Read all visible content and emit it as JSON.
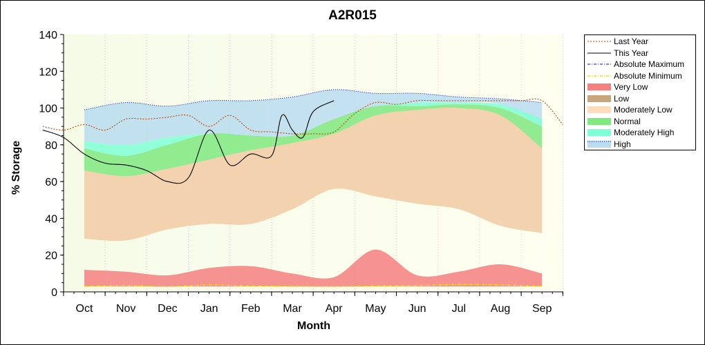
{
  "chart_data": {
    "type": "area",
    "title": "A2R015",
    "xlabel": "Month",
    "ylabel": "% Storage",
    "ylim": [
      0,
      140
    ],
    "yticks": [
      0,
      20,
      40,
      60,
      80,
      100,
      120,
      140
    ],
    "categories": [
      "Oct",
      "Nov",
      "Dec",
      "Jan",
      "Feb",
      "Mar",
      "Apr",
      "May",
      "Jun",
      "Jul",
      "Aug",
      "Sep"
    ],
    "bands": [
      {
        "name": "High",
        "color": "#b9dcf0",
        "stroke": "#0000cc",
        "lower": [
          82,
          80,
          84,
          86,
          85,
          85,
          94,
          101,
          103,
          103,
          102,
          90
        ],
        "upper": [
          99,
          103,
          101,
          104,
          104,
          106,
          110,
          108,
          108,
          106,
          105,
          103
        ]
      },
      {
        "name": "Moderately High",
        "color": "#7fffd4",
        "lower": [
          78,
          74,
          80,
          86,
          85,
          85,
          94,
          101,
          101,
          102,
          100,
          90
        ],
        "upper": [
          82,
          80,
          84,
          86,
          85,
          85,
          94,
          101,
          103,
          103,
          102,
          94
        ]
      },
      {
        "name": "Normal",
        "color": "#7fe87f",
        "lower": [
          66,
          63,
          67,
          72,
          77,
          81,
          86,
          96,
          99,
          100,
          96,
          78
        ],
        "upper": [
          78,
          74,
          80,
          86,
          85,
          85,
          94,
          101,
          101,
          102,
          100,
          90
        ]
      },
      {
        "name": "Low",
        "color": "#c8a57c",
        "lower": [
          29,
          28,
          34,
          37,
          37,
          45,
          56,
          52,
          48,
          45,
          36,
          32
        ],
        "upper": [
          66,
          63,
          67,
          72,
          77,
          81,
          86,
          96,
          99,
          100,
          96,
          78
        ]
      },
      {
        "name": "Moderately Low",
        "color": "#ffdcbb",
        "lower": [
          29,
          28,
          34,
          37,
          37,
          45,
          56,
          52,
          48,
          45,
          36,
          32
        ],
        "upper": [
          66,
          63,
          67,
          72,
          77,
          81,
          86,
          96,
          99,
          100,
          96,
          78
        ]
      },
      {
        "name": "Very Low",
        "color": "#f58080",
        "lower": [
          3,
          3,
          3,
          3,
          3,
          3,
          3,
          3,
          3,
          3,
          3,
          3
        ],
        "upper": [
          12,
          11,
          9,
          13,
          14,
          10,
          8,
          23,
          9,
          11,
          15,
          10
        ]
      }
    ],
    "series": [
      {
        "name": "Last Year",
        "style": "dotted",
        "color": "#c04000",
        "x": [
          -1,
          -0.5,
          0,
          0.5,
          1,
          1.5,
          2,
          2.5,
          3,
          3.5,
          4,
          4.5,
          5,
          5.5,
          6,
          6.5,
          7,
          7.5,
          8,
          8.5,
          9,
          9.5,
          10,
          10.5,
          11,
          11.5
        ],
        "y": [
          90,
          88,
          91,
          88,
          94,
          94,
          95,
          96,
          90,
          96,
          88,
          87,
          86,
          86,
          87,
          97,
          103,
          102,
          104,
          104,
          104,
          104,
          104,
          104,
          104,
          91
        ]
      },
      {
        "name": "This Year",
        "style": "solid",
        "color": "#000000",
        "x": [
          -1,
          -0.5,
          0,
          0.5,
          1,
          1.5,
          2,
          2.5,
          3,
          3.5,
          4,
          4.5,
          4.75,
          5,
          5.25,
          5.5,
          6
        ],
        "y": [
          88,
          84,
          75,
          70,
          69,
          66,
          60,
          62,
          88,
          69,
          75,
          74,
          96,
          88,
          84,
          98,
          104
        ]
      },
      {
        "name": "Absolute Maximum",
        "style": "dashdot",
        "color": "#0000ff",
        "x": [],
        "y": []
      },
      {
        "name": "Absolute Minimum",
        "style": "dashdot",
        "color": "#e8e800",
        "x": [
          0,
          1,
          2,
          3,
          4,
          5,
          6,
          7,
          8,
          9,
          10,
          11
        ],
        "y": [
          3,
          3.5,
          2.8,
          3.8,
          3.2,
          3,
          2.8,
          3.2,
          3.5,
          4,
          3.8,
          3
        ]
      }
    ],
    "legend_position": "right",
    "grid": true
  },
  "legend": [
    {
      "label": "Last Year",
      "kind": "line",
      "color": "#c04000",
      "dash": "2,2"
    },
    {
      "label": "This Year",
      "kind": "line",
      "color": "#000000",
      "dash": ""
    },
    {
      "label": "Absolute Maximum",
      "kind": "line",
      "color": "#0000ff",
      "dash": "4,2,1,2"
    },
    {
      "label": "Absolute Minimum",
      "kind": "line",
      "color": "#e8e800",
      "dash": "4,2,1,2"
    },
    {
      "label": "Very Low",
      "kind": "fill",
      "color": "#f58080"
    },
    {
      "label": "Low",
      "kind": "fill",
      "color": "#c8a57c"
    },
    {
      "label": "Moderately Low",
      "kind": "fill",
      "color": "#ffdcbb"
    },
    {
      "label": "Normal",
      "kind": "fill",
      "color": "#7fe87f"
    },
    {
      "label": "Moderately High",
      "kind": "fill",
      "color": "#7fffd4"
    },
    {
      "label": "High",
      "kind": "fill",
      "color": "#b9dcf0"
    }
  ]
}
